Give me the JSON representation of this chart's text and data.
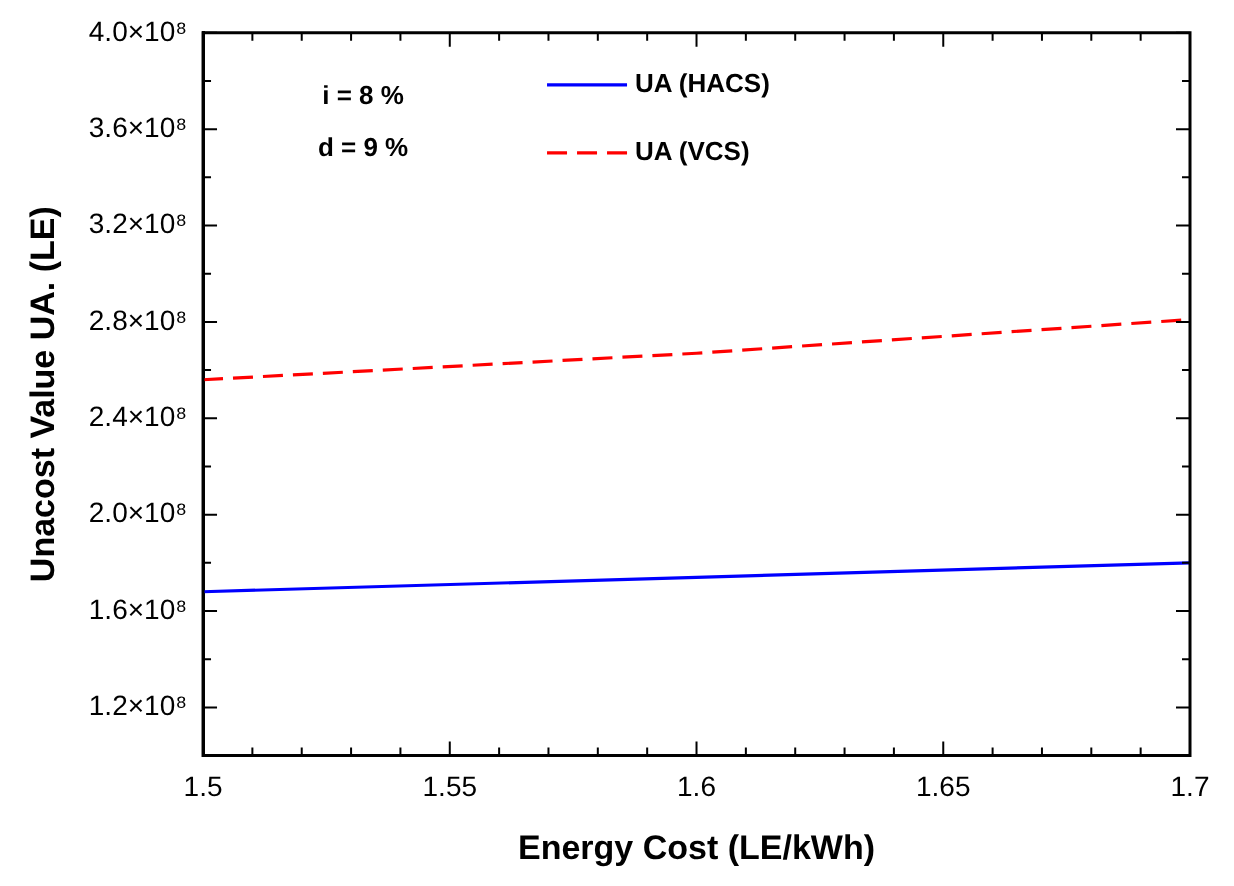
{
  "chart_data": {
    "type": "line",
    "xlabel": "Energy Cost (LE/kWh)",
    "ylabel": "Unacost Value UA. (LE)",
    "x": [
      1.5,
      1.6,
      1.7
    ],
    "series": [
      {
        "name": "UA (HACS)",
        "color": "#0000ff",
        "values": [
          168000000,
          174000000,
          180000000
        ],
        "line_style": "solid"
      },
      {
        "name": "UA (VCS)",
        "color": "#ff0000",
        "values": [
          256000000,
          267000000,
          281000000
        ],
        "line_style": "dashed"
      }
    ],
    "xlim": [
      1.5,
      1.7
    ],
    "xticks": [
      1.5,
      {
        "value": 1.51,
        "label": null
      },
      {
        "value": 1.52,
        "label": null
      },
      {
        "value": 1.53,
        "label": null
      },
      {
        "value": 1.54,
        "label": null
      },
      1.55,
      {
        "value": 1.56,
        "label": null
      },
      {
        "value": 1.57,
        "label": null
      },
      {
        "value": 1.58,
        "label": null
      },
      {
        "value": 1.59,
        "label": null
      },
      1.6,
      {
        "value": 1.61,
        "label": null
      },
      {
        "value": 1.62,
        "label": null
      },
      {
        "value": 1.63,
        "label": null
      },
      {
        "value": 1.64,
        "label": null
      },
      1.65,
      {
        "value": 1.66,
        "label": null
      },
      {
        "value": 1.67,
        "label": null
      },
      {
        "value": 1.68,
        "label": null
      },
      {
        "value": 1.69,
        "label": null
      },
      1.7
    ],
    "ylim": [
      100000000,
      400000000
    ],
    "yticks": [
      {
        "value": 120000000,
        "label": "1.2×10⁸"
      },
      {
        "value": 140000000,
        "label": null
      },
      {
        "value": 160000000,
        "label": "1.6×10⁸"
      },
      {
        "value": 180000000,
        "label": null
      },
      {
        "value": 200000000,
        "label": "2.0×10⁸"
      },
      {
        "value": 220000000,
        "label": null
      },
      {
        "value": 240000000,
        "label": "2.4×10⁸"
      },
      {
        "value": 260000000,
        "label": null
      },
      {
        "value": 280000000,
        "label": "2.8×10⁸"
      },
      {
        "value": 300000000,
        "label": null
      },
      {
        "value": 320000000,
        "label": "3.2×10⁸"
      },
      {
        "value": 340000000,
        "label": null
      },
      {
        "value": 360000000,
        "label": "3.6×10⁸"
      },
      {
        "value": 380000000,
        "label": null
      },
      {
        "value": 400000000,
        "label": "4.0×10⁸"
      }
    ],
    "annotations": [
      "i = 8 %",
      "d = 9 %"
    ],
    "legend": "top",
    "grid": false,
    "marker": "none"
  }
}
